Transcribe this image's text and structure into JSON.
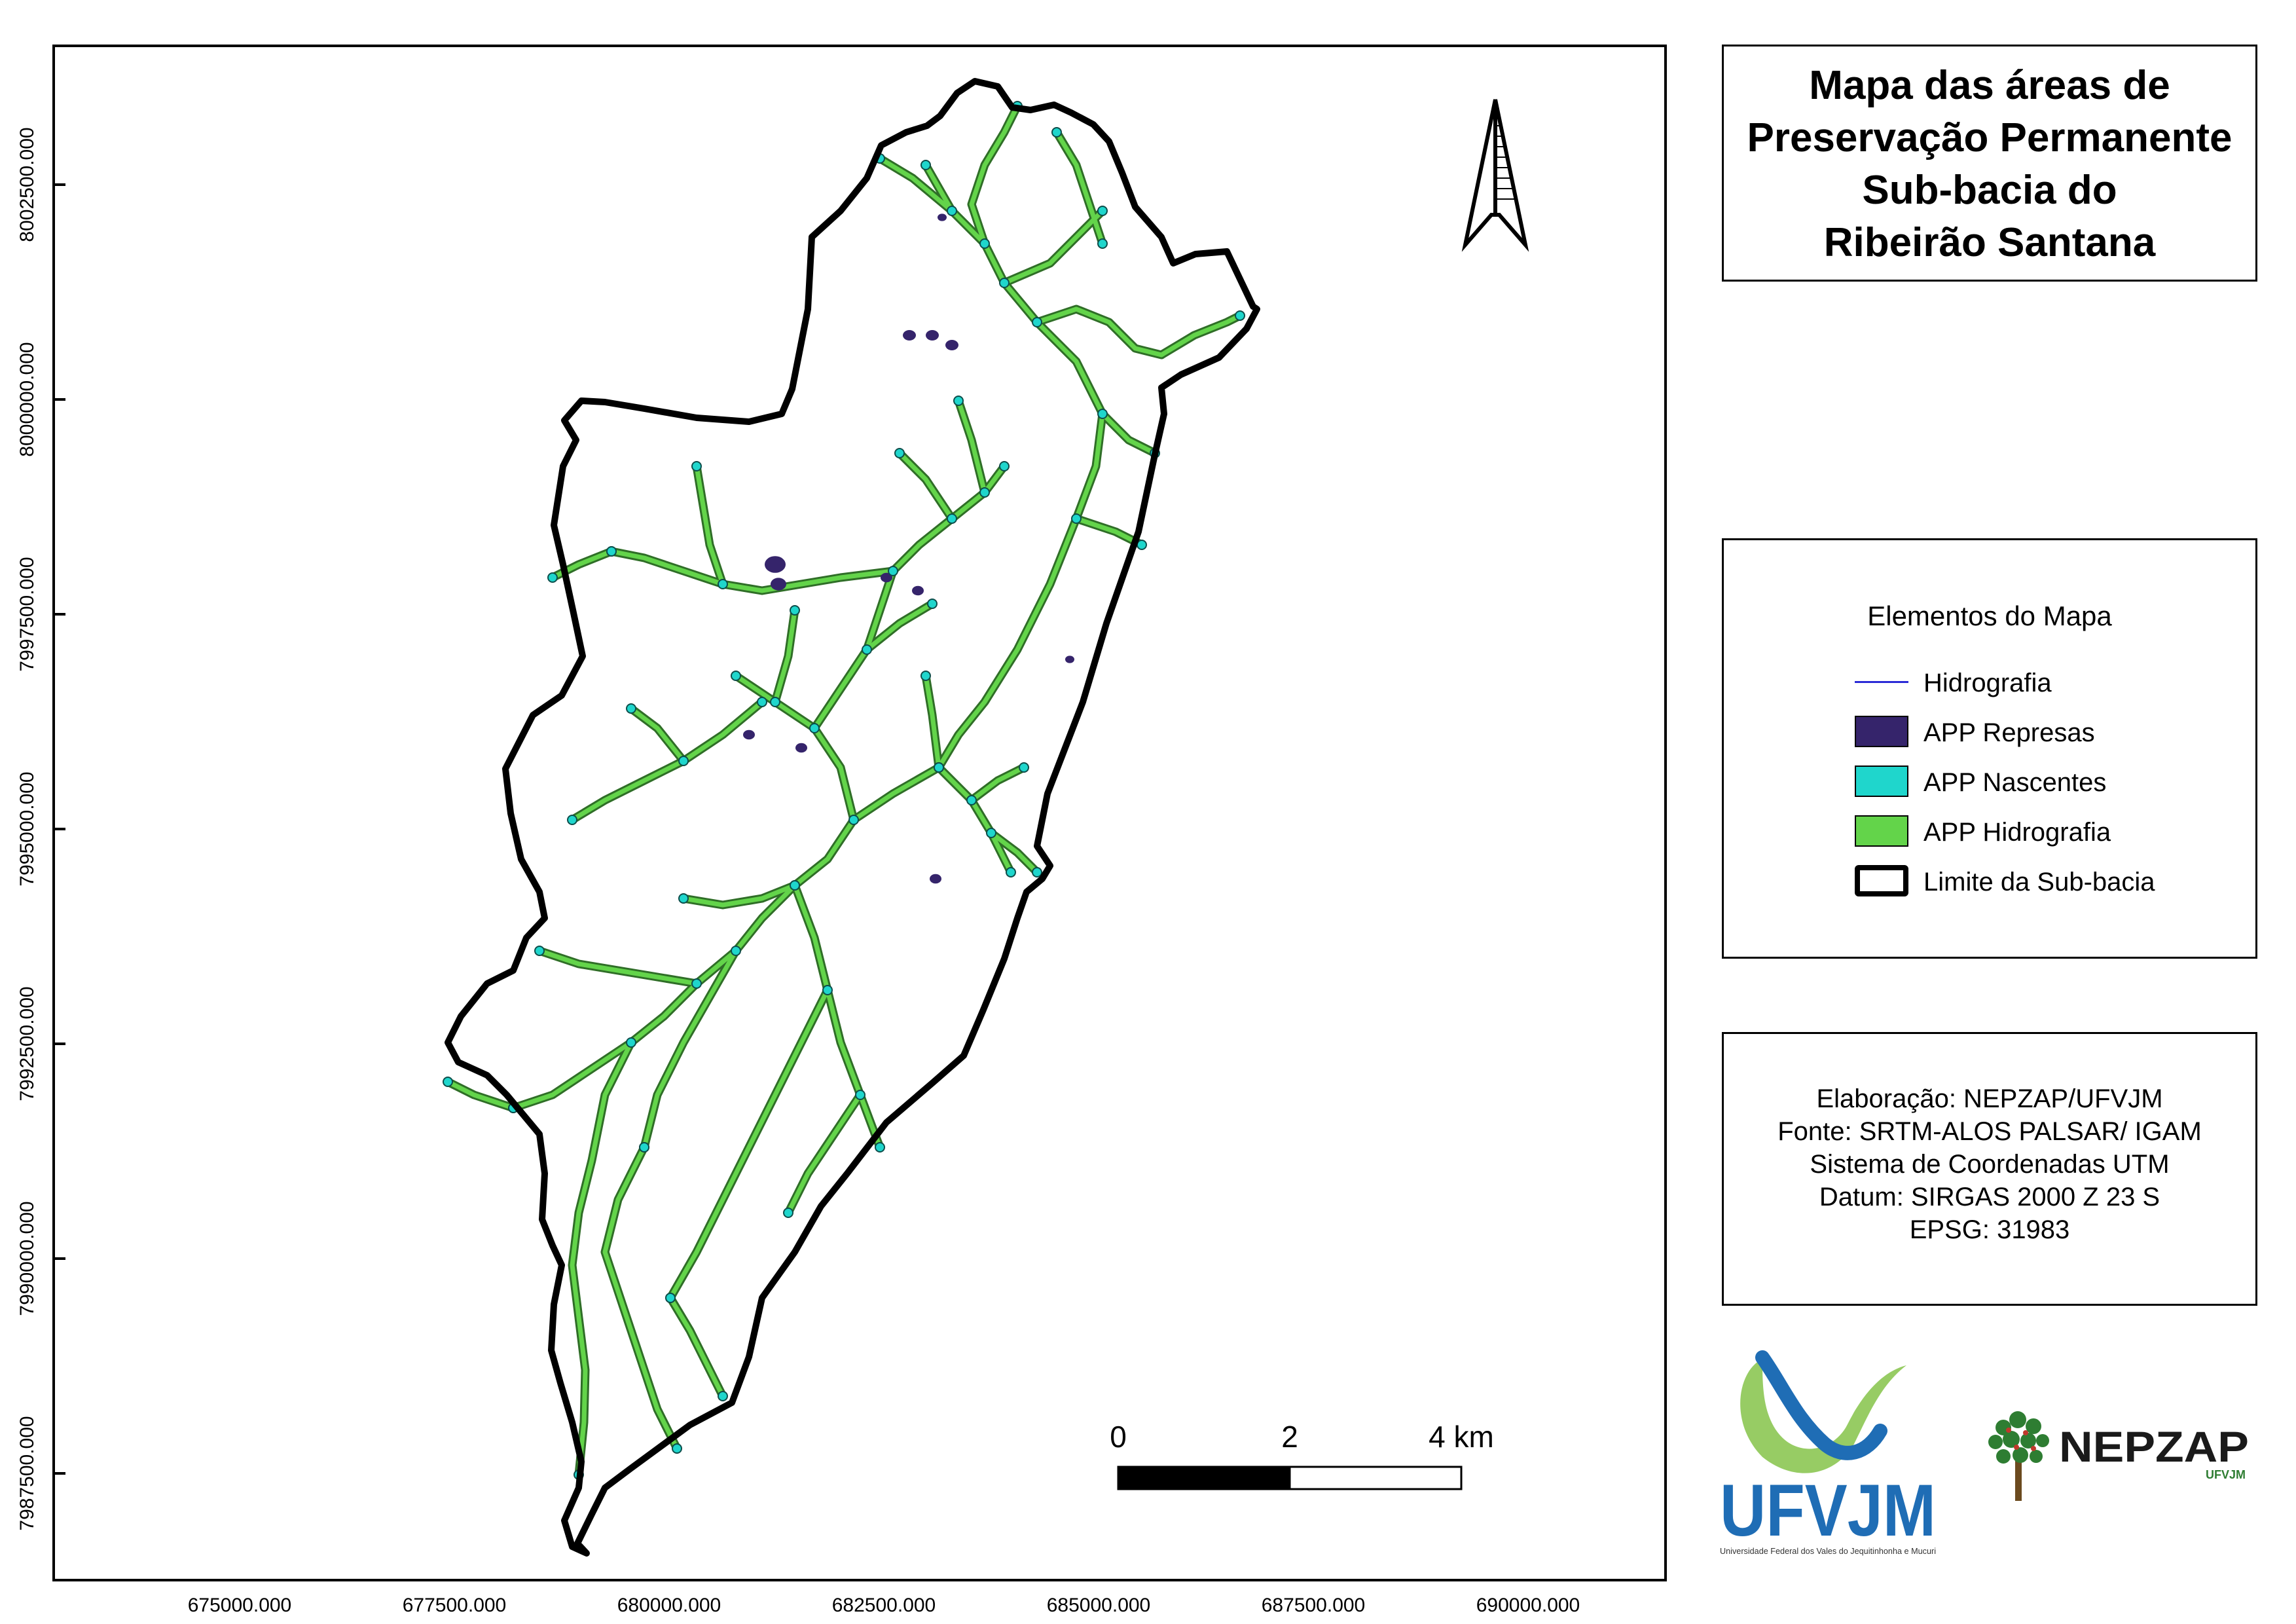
{
  "title": {
    "lines": [
      "Mapa das áreas de",
      "Preservação Permanente",
      "Sub-bacia do",
      "Ribeirão Santana"
    ]
  },
  "axes": {
    "y_ticks": [
      "8002500.000",
      "8000000.000",
      "7997500.000",
      "7995000.000",
      "7992500.000",
      "7990000.000",
      "7987500.000"
    ],
    "x_ticks": [
      "675000.000",
      "677500.000",
      "680000.000",
      "682500.000",
      "685000.000",
      "687500.000",
      "690000.000"
    ]
  },
  "scale_bar": {
    "labels": [
      "0",
      "2",
      "4 km"
    ]
  },
  "legend": {
    "title": "Elementos do Mapa",
    "items": [
      {
        "label": "Hidrografia",
        "color": "#2b2bd6",
        "kind": "line"
      },
      {
        "label": "APP Represas",
        "color": "#35246b",
        "kind": "fill"
      },
      {
        "label": "APP Nascentes",
        "color": "#1fd6cc",
        "kind": "fill"
      },
      {
        "label": "APP Hidrografia",
        "color": "#63d44a",
        "kind": "fill"
      },
      {
        "label": "Limite da Sub-bacia",
        "color": "#000000",
        "kind": "outline"
      }
    ]
  },
  "credits": {
    "lines": [
      "Elaboração: NEPZAP/UFVJM",
      "Fonte: SRTM-ALOS PALSAR/ IGAM",
      "Sistema de Coordenadas UTM",
      "Datum: SIRGAS 2000 Z 23 S",
      "EPSG: 31983"
    ]
  },
  "logos": {
    "ufvjm": {
      "name": "UFVJM",
      "subtitle": "Universidade Federal dos Vales do Jequitinhonha e Mucuri",
      "color": "#1f6db5",
      "accent": "#8cc653"
    },
    "nepzap": {
      "name": "NEPZAP",
      "subtitle": "UFVJM",
      "color": "#1a1a1a",
      "accent": "#2e7d32"
    }
  },
  "north_arrow": {
    "icon": "north-arrow-icon"
  }
}
